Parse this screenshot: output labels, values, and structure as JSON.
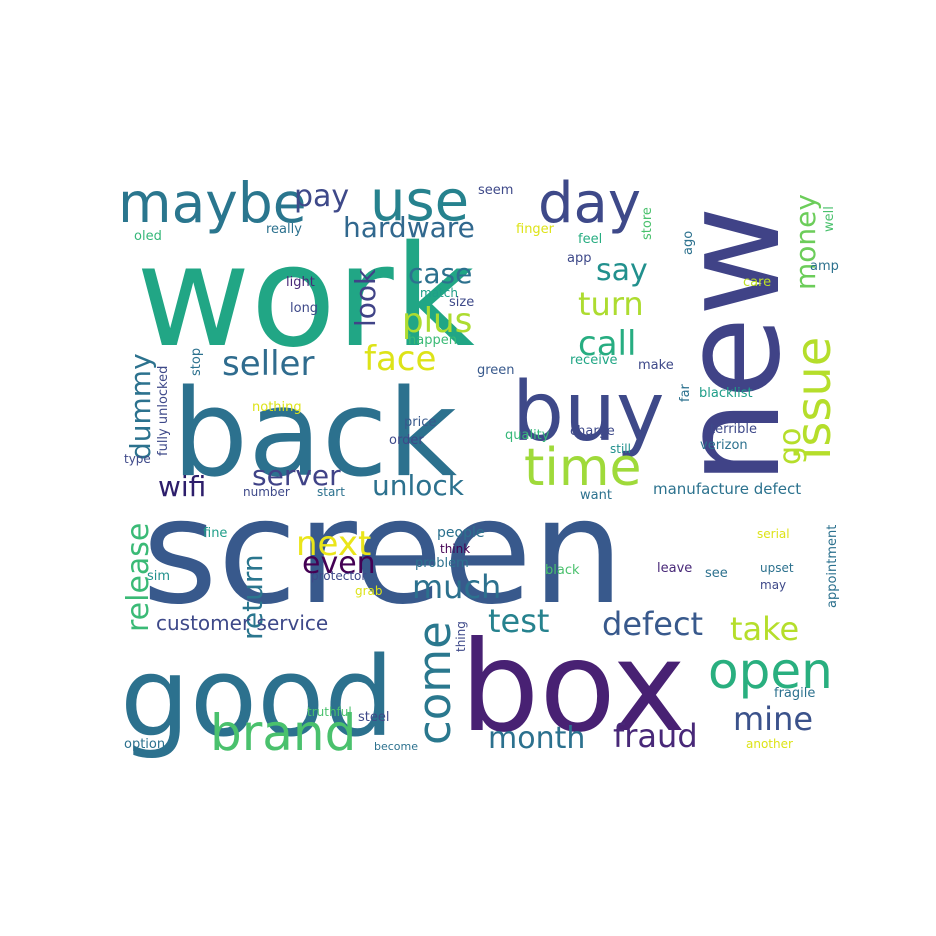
{
  "words": [
    {
      "text": "work",
      "color": "#21a685"
    },
    {
      "text": "screen",
      "color": "#38598c"
    },
    {
      "text": "back",
      "color": "#2c718e"
    },
    {
      "text": "new",
      "color": "#404387"
    },
    {
      "text": "good",
      "color": "#2c718e"
    },
    {
      "text": "box",
      "color": "#482173"
    },
    {
      "text": "buy",
      "color": "#3e4989"
    },
    {
      "text": "maybe",
      "color": "#2a768e"
    },
    {
      "text": "use",
      "color": "#26828e"
    },
    {
      "text": "day",
      "color": "#3e4989"
    },
    {
      "text": "time",
      "color": "#9fda3a"
    },
    {
      "text": "issue",
      "color": "#b5de2b"
    },
    {
      "text": "brand",
      "color": "#4ac16d"
    },
    {
      "text": "open",
      "color": "#29af7f"
    },
    {
      "text": "come",
      "color": "#2a788e"
    },
    {
      "text": "pay",
      "color": "#3e4989"
    },
    {
      "text": "hardware",
      "color": "#31688e"
    },
    {
      "text": "say",
      "color": "#21908d"
    },
    {
      "text": "turn",
      "color": "#addc30"
    },
    {
      "text": "money",
      "color": "#6ccd5a"
    },
    {
      "text": "case",
      "color": "#2c718e"
    },
    {
      "text": "look",
      "color": "#404387"
    },
    {
      "text": "plus",
      "color": "#addc30"
    },
    {
      "text": "call",
      "color": "#27ad81"
    },
    {
      "text": "seller",
      "color": "#2f6c8e"
    },
    {
      "text": "face",
      "color": "#dde318"
    },
    {
      "text": "go",
      "color": "#b5de2b"
    },
    {
      "text": "dummy",
      "color": "#2c728e"
    },
    {
      "text": "wifi",
      "color": "#2d1e6b"
    },
    {
      "text": "server",
      "color": "#404387"
    },
    {
      "text": "unlock",
      "color": "#2c718e"
    },
    {
      "text": "release",
      "color": "#3aba76"
    },
    {
      "text": "return",
      "color": "#2a768e"
    },
    {
      "text": "next",
      "color": "#eae51a"
    },
    {
      "text": "even",
      "color": "#440154"
    },
    {
      "text": "much",
      "color": "#2c718e"
    },
    {
      "text": "test",
      "color": "#26828e"
    },
    {
      "text": "defect",
      "color": "#38598c"
    },
    {
      "text": "take",
      "color": "#b5de2b"
    },
    {
      "text": "customer service",
      "color": "#3e4989"
    },
    {
      "text": "mine",
      "color": "#3b528b"
    },
    {
      "text": "month",
      "color": "#2c718e"
    },
    {
      "text": "fraud",
      "color": "#482878"
    },
    {
      "text": "seem",
      "color": "#3e4989"
    },
    {
      "text": "store",
      "color": "#4ac16d"
    },
    {
      "text": "well",
      "color": "#4ac16d"
    },
    {
      "text": "oled",
      "color": "#35b779"
    },
    {
      "text": "really",
      "color": "#2c718e"
    },
    {
      "text": "finger",
      "color": "#dde318"
    },
    {
      "text": "feel",
      "color": "#27ad81"
    },
    {
      "text": "app",
      "color": "#3e4989"
    },
    {
      "text": "ago",
      "color": "#2c718e"
    },
    {
      "text": "amp",
      "color": "#2c718e"
    },
    {
      "text": "light",
      "color": "#482878"
    },
    {
      "text": "match",
      "color": "#1f9e89"
    },
    {
      "text": "size",
      "color": "#3e4989"
    },
    {
      "text": "care",
      "color": "#bddf26"
    },
    {
      "text": "long",
      "color": "#3e4989"
    },
    {
      "text": "happen",
      "color": "#3aba76"
    },
    {
      "text": "stop",
      "color": "#2c718e"
    },
    {
      "text": "receive",
      "color": "#21a685"
    },
    {
      "text": "make",
      "color": "#3e4989"
    },
    {
      "text": "green",
      "color": "#38598c"
    },
    {
      "text": "fully unlocked",
      "color": "#3e4989"
    },
    {
      "text": "nothing",
      "color": "#dde318"
    },
    {
      "text": "far",
      "color": "#2c718e"
    },
    {
      "text": "blacklist",
      "color": "#1f9e89"
    },
    {
      "text": "price",
      "color": "#38598c"
    },
    {
      "text": "terrible",
      "color": "#3e4989"
    },
    {
      "text": "order",
      "color": "#3e4989"
    },
    {
      "text": "quality",
      "color": "#35b779"
    },
    {
      "text": "charge",
      "color": "#3e4989"
    },
    {
      "text": "verizon",
      "color": "#2c718e"
    },
    {
      "text": "still",
      "color": "#21908d"
    },
    {
      "text": "type",
      "color": "#3e4989"
    },
    {
      "text": "number",
      "color": "#3e4989"
    },
    {
      "text": "start",
      "color": "#2c718e"
    },
    {
      "text": "want",
      "color": "#2c718e"
    },
    {
      "text": "manufacture defect",
      "color": "#2c728e"
    },
    {
      "text": "fine",
      "color": "#1f9e89"
    },
    {
      "text": "think",
      "color": "#440154"
    },
    {
      "text": "serial",
      "color": "#dde318"
    },
    {
      "text": "people",
      "color": "#2c718e"
    },
    {
      "text": "sim",
      "color": "#21908d"
    },
    {
      "text": "protector",
      "color": "#3e4989"
    },
    {
      "text": "problem",
      "color": "#2c718e"
    },
    {
      "text": "black",
      "color": "#4ac16d"
    },
    {
      "text": "leave",
      "color": "#482878"
    },
    {
      "text": "see",
      "color": "#2c718e"
    },
    {
      "text": "upset",
      "color": "#2c718e"
    },
    {
      "text": "appointment",
      "color": "#2c718e"
    },
    {
      "text": "may",
      "color": "#3e4989"
    },
    {
      "text": "grab",
      "color": "#dde318"
    },
    {
      "text": "thing",
      "color": "#3e4989"
    },
    {
      "text": "truthful",
      "color": "#4ac16d"
    },
    {
      "text": "steel",
      "color": "#3e4989"
    },
    {
      "text": "fragile",
      "color": "#2c718e"
    },
    {
      "text": "option",
      "color": "#2c718e"
    },
    {
      "text": "become",
      "color": "#2c718e"
    },
    {
      "text": "another",
      "color": "#dde318"
    }
  ]
}
